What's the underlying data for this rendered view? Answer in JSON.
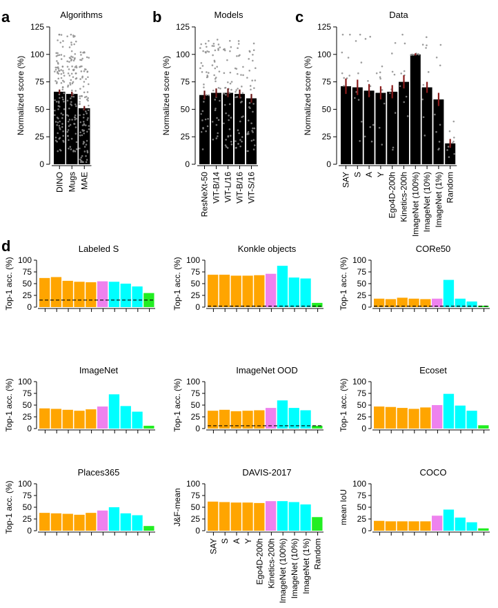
{
  "figure": {
    "panel_letters": [
      "a",
      "b",
      "c",
      "d"
    ]
  },
  "colors": {
    "orange": "#FFA500",
    "violet": "#EE82EE",
    "cyan": "#00FFFF",
    "green": "#22EE22",
    "bar_black": "#000000",
    "error_red": "#8B1A1A",
    "dots": "#8c8c8c"
  },
  "category_labels": [
    "SAY",
    "S",
    "A",
    "Y",
    "Ego4D-200h",
    "Kinetics-200h",
    "ImageNet (100%)",
    "ImageNet (10%)",
    "ImageNet (1%)",
    "Random"
  ],
  "chart_data": [
    {
      "id": "a",
      "type": "bar",
      "title": "Algorithms",
      "ylabel": "Normalized score (%)",
      "ylim": [
        0,
        125
      ],
      "yticks": [
        0,
        25,
        50,
        75,
        100,
        125
      ],
      "categories": [
        "DINO",
        "Mugs",
        "MAE"
      ],
      "values": [
        66,
        64,
        51
      ],
      "errors": [
        2,
        2,
        2
      ],
      "scatter_points": 90,
      "point_range": [
        2,
        118
      ]
    },
    {
      "id": "b",
      "type": "bar",
      "title": "Models",
      "ylabel": "Normalized score (%)",
      "ylim": [
        0,
        125
      ],
      "yticks": [
        0,
        25,
        50,
        75,
        100,
        125
      ],
      "categories": [
        "ResNeXt-50",
        "ViT-B/14",
        "ViT-L/16",
        "ViT-B/16",
        "ViT-S/16"
      ],
      "values": [
        63,
        65,
        65,
        64,
        60
      ],
      "errors": [
        4,
        4,
        4,
        4,
        4
      ],
      "scatter_points": 36,
      "point_range": [
        12,
        118
      ]
    },
    {
      "id": "c",
      "type": "bar",
      "title": "Data",
      "ylabel": "Normalized score (%)",
      "ylim": [
        0,
        125
      ],
      "yticks": [
        0,
        25,
        50,
        75,
        100,
        125
      ],
      "categories": [
        "SAY",
        "S",
        "A",
        "Y",
        "Ego4D-200h",
        "Kinetics-200h",
        "ImageNet (100%)",
        "ImageNet (10%)",
        "ImageNet (1%)",
        "Random"
      ],
      "values": [
        71,
        70,
        67,
        65,
        66,
        75,
        100,
        70,
        59,
        19
      ],
      "errors": [
        7,
        7,
        6,
        6,
        6,
        6,
        1,
        5,
        6,
        4
      ],
      "scatter_points": 9,
      "point_range": [
        5,
        118
      ]
    },
    {
      "id": "d1",
      "type": "bar",
      "title": "Labeled S",
      "ylabel": "Top-1 acc. (%)",
      "ylim": [
        0,
        100
      ],
      "yticks": [
        0,
        25,
        50,
        75,
        100
      ],
      "values": [
        62,
        64,
        56,
        54,
        53,
        55,
        54,
        50,
        44,
        30
      ],
      "chance": 15
    },
    {
      "id": "d2",
      "type": "bar",
      "title": "Konkle objects",
      "ylabel": "Top-1 acc. (%)",
      "ylim": [
        0,
        100
      ],
      "yticks": [
        0,
        25,
        50,
        75,
        100
      ],
      "values": [
        69,
        69,
        67,
        67,
        68,
        71,
        88,
        63,
        61,
        9
      ],
      "chance": 2
    },
    {
      "id": "d3",
      "type": "bar",
      "title": "CORe50",
      "ylabel": "Top-1 acc. (%)",
      "ylim": [
        0,
        100
      ],
      "yticks": [
        0,
        25,
        50,
        75,
        100
      ],
      "values": [
        18,
        17,
        20,
        18,
        17,
        18,
        58,
        18,
        12,
        3
      ],
      "chance": 2
    },
    {
      "id": "d4",
      "type": "bar",
      "title": "ImageNet",
      "ylabel": "Top-1 acc. (%)",
      "ylim": [
        0,
        100
      ],
      "yticks": [
        0,
        25,
        50,
        75,
        100
      ],
      "values": [
        43,
        42,
        40,
        38,
        41,
        47,
        73,
        48,
        36,
        6
      ],
      "chance": null
    },
    {
      "id": "d5",
      "type": "bar",
      "title": "ImageNet OOD",
      "ylabel": "Top-1 acc. (%)",
      "ylim": [
        0,
        100
      ],
      "yticks": [
        0,
        25,
        50,
        75,
        100
      ],
      "values": [
        38,
        40,
        37,
        38,
        39,
        44,
        60,
        44,
        39,
        6
      ],
      "chance": 6
    },
    {
      "id": "d6",
      "type": "bar",
      "title": "Ecoset",
      "ylabel": "Top-1 acc. (%)",
      "ylim": [
        0,
        100
      ],
      "yticks": [
        0,
        25,
        50,
        75,
        100
      ],
      "values": [
        47,
        46,
        44,
        42,
        45,
        50,
        74,
        49,
        38,
        7
      ],
      "chance": null
    },
    {
      "id": "d7",
      "type": "bar",
      "title": "Places365",
      "ylabel": "Top-1 acc. (%)",
      "ylim": [
        0,
        100
      ],
      "yticks": [
        0,
        25,
        50,
        75,
        100
      ],
      "values": [
        38,
        37,
        36,
        34,
        38,
        43,
        50,
        37,
        33,
        10
      ],
      "chance": null
    },
    {
      "id": "d8",
      "type": "bar",
      "title": "DAVIS-2017",
      "ylabel": "J&F-mean",
      "ylim": [
        0,
        100
      ],
      "yticks": [
        0,
        25,
        50,
        75,
        100
      ],
      "values": [
        62,
        61,
        60,
        60,
        59,
        63,
        63,
        61,
        56,
        29
      ],
      "chance": null
    },
    {
      "id": "d9",
      "type": "bar",
      "title": "COCO",
      "ylabel": "mean IoU",
      "ylim": [
        0,
        100
      ],
      "yticks": [
        0,
        25,
        50,
        75,
        100
      ],
      "values": [
        21,
        20,
        20,
        20,
        20,
        32,
        45,
        28,
        18,
        5
      ],
      "chance": null
    }
  ]
}
